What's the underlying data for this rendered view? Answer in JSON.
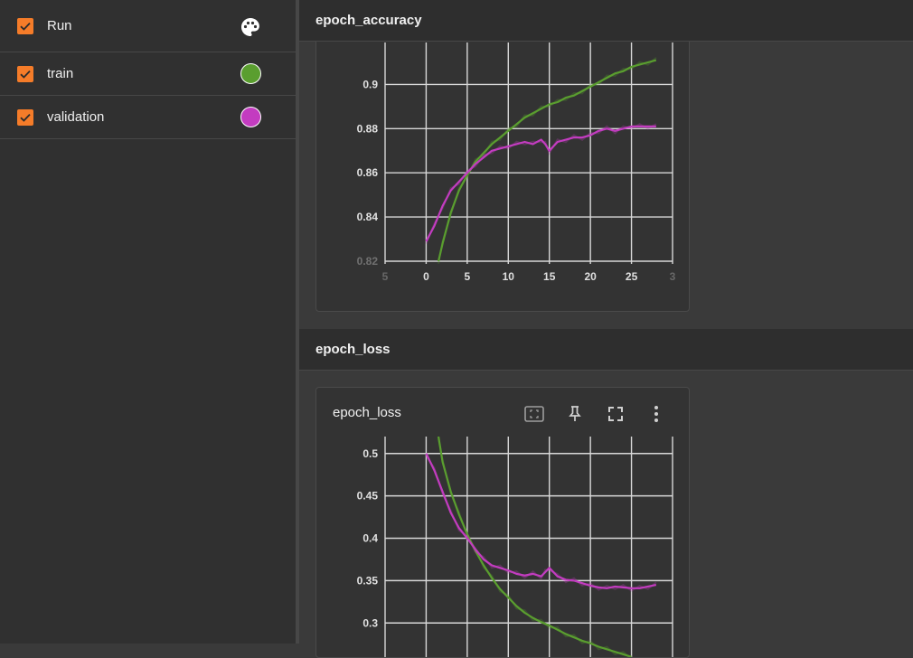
{
  "sidebar": {
    "header_label": "Run",
    "runs": [
      {
        "label": "train",
        "color": "#5a9e2f"
      },
      {
        "label": "validation",
        "color": "#c33cc0"
      }
    ]
  },
  "groups": {
    "accuracy": {
      "title": "epoch_accuracy"
    },
    "loss": {
      "title": "epoch_loss",
      "card_title": "epoch_loss"
    }
  },
  "icons": [
    "palette-icon",
    "check-icon",
    "selection-icon",
    "pin-icon",
    "fullscreen-icon",
    "more-vert-icon"
  ],
  "colors": {
    "train": "#5a9e2f",
    "validation": "#c33cc0",
    "checkbox": "#f57c29"
  },
  "chart_data": [
    {
      "type": "line",
      "title": "",
      "x_ticks": [
        "5",
        "0",
        "5",
        "10",
        "15",
        "20",
        "25",
        "3"
      ],
      "y_ticks": [
        "0.9",
        "0.88",
        "0.86",
        "0.84",
        "0.82"
      ],
      "xlim": [
        -5,
        30
      ],
      "ylim": [
        0.82,
        0.91
      ],
      "grid": true,
      "series": [
        {
          "name": "train",
          "x": [
            1.5,
            2,
            3,
            4,
            5,
            6,
            7,
            8,
            9,
            10,
            11,
            12,
            13,
            14,
            15,
            16,
            17,
            18,
            19,
            20,
            21,
            22,
            23,
            24,
            25,
            26,
            27,
            28
          ],
          "y": [
            0.82,
            0.828,
            0.842,
            0.852,
            0.859,
            0.865,
            0.869,
            0.873,
            0.876,
            0.879,
            0.882,
            0.885,
            0.887,
            0.889,
            0.891,
            0.892,
            0.894,
            0.895,
            0.897,
            0.899,
            0.901,
            0.903,
            0.905,
            0.906,
            0.908,
            0.909,
            0.91,
            0.911
          ]
        },
        {
          "name": "validation",
          "x": [
            0,
            1,
            2,
            3,
            4,
            5,
            6,
            7,
            8,
            9,
            10,
            11,
            12,
            13,
            14,
            14.5,
            15,
            16,
            17,
            18,
            19,
            20,
            21,
            22,
            23,
            24,
            25,
            26,
            27,
            28
          ],
          "y": [
            0.829,
            0.836,
            0.845,
            0.852,
            0.856,
            0.86,
            0.864,
            0.867,
            0.87,
            0.871,
            0.872,
            0.873,
            0.874,
            0.873,
            0.875,
            0.873,
            0.87,
            0.874,
            0.875,
            0.876,
            0.876,
            0.877,
            0.879,
            0.88,
            0.879,
            0.88,
            0.881,
            0.881,
            0.881,
            0.881
          ]
        }
      ]
    },
    {
      "type": "line",
      "title": "",
      "y_ticks": [
        "0.5",
        "0.45",
        "0.4",
        "0.35",
        "0.3"
      ],
      "xlim": [
        -5,
        30
      ],
      "ylim": [
        0.28,
        0.52
      ],
      "grid": true,
      "series": [
        {
          "name": "train",
          "x": [
            1.5,
            2,
            3,
            4,
            5,
            6,
            7,
            8,
            9,
            10,
            11,
            12,
            13,
            14,
            15,
            16,
            17,
            18,
            19,
            20,
            21,
            22,
            23,
            24,
            25
          ],
          "y": [
            0.52,
            0.49,
            0.455,
            0.428,
            0.405,
            0.385,
            0.368,
            0.353,
            0.34,
            0.33,
            0.32,
            0.312,
            0.306,
            0.301,
            0.297,
            0.292,
            0.287,
            0.283,
            0.279,
            0.276,
            0.272,
            0.269,
            0.266,
            0.263,
            0.26
          ]
        },
        {
          "name": "validation",
          "x": [
            0,
            1,
            2,
            3,
            4,
            5,
            6,
            7,
            8,
            9,
            10,
            11,
            12,
            13,
            14,
            14.5,
            15,
            16,
            17,
            18,
            19,
            20,
            21,
            22,
            23,
            24,
            25,
            26,
            27,
            28
          ],
          "y": [
            0.5,
            0.48,
            0.455,
            0.43,
            0.412,
            0.4,
            0.387,
            0.375,
            0.368,
            0.365,
            0.362,
            0.358,
            0.356,
            0.358,
            0.355,
            0.36,
            0.365,
            0.355,
            0.351,
            0.35,
            0.347,
            0.344,
            0.342,
            0.341,
            0.343,
            0.342,
            0.341,
            0.341,
            0.343,
            0.345
          ]
        }
      ]
    }
  ]
}
